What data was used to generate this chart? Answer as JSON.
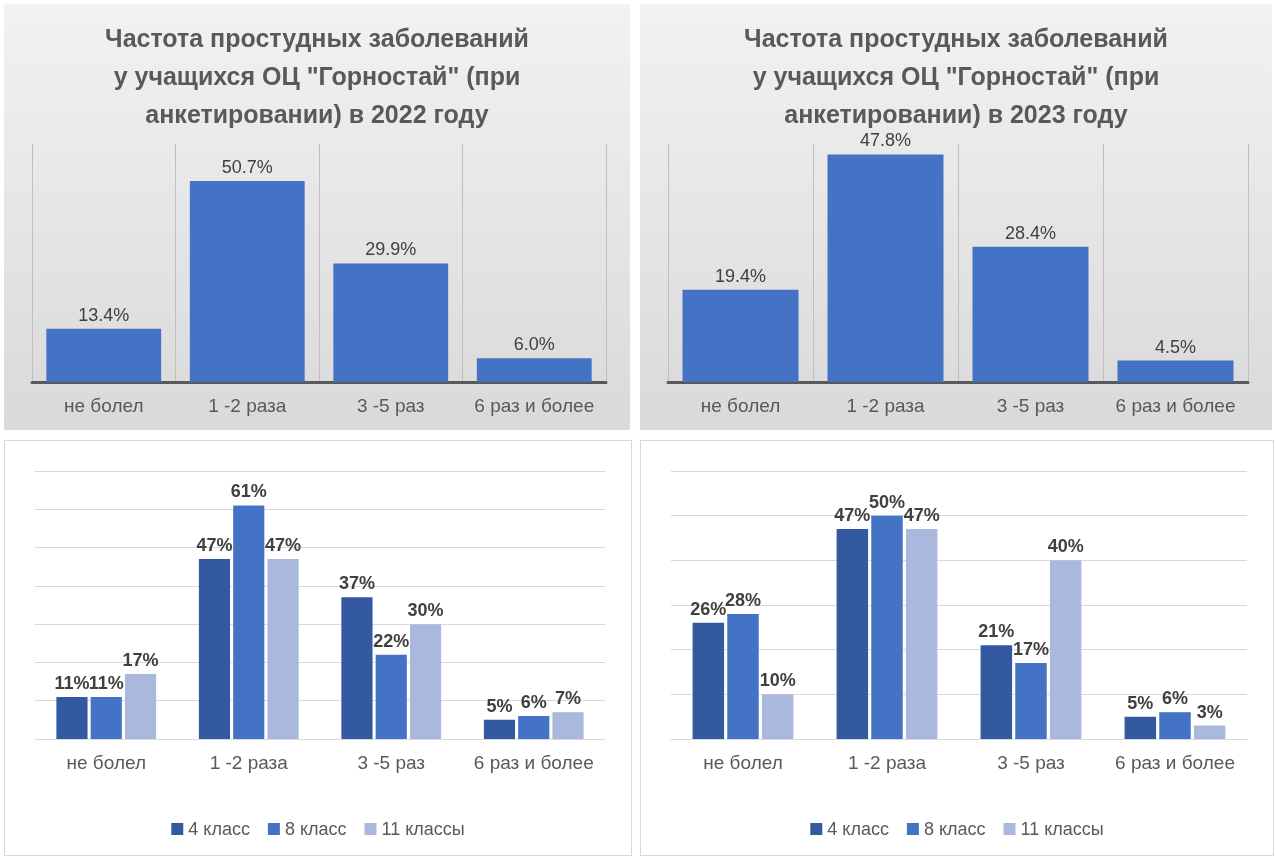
{
  "chart_data": [
    {
      "type": "bar",
      "title": "Частота простудных заболеваний у учащихся ОЦ \"Горностай\" (при анкетировании) в 2022 году",
      "categories": [
        "не болел",
        "1 -2 раза",
        "3 -5 раз",
        "6 раз и более"
      ],
      "values": [
        13.4,
        50.7,
        29.9,
        6.0
      ],
      "value_labels": [
        "13.4%",
        "50.7%",
        "29.9%",
        "6.0%"
      ],
      "color": "#4472c4",
      "grid": "x",
      "tick_labels": "x"
    },
    {
      "type": "bar",
      "title": "Частота простудных заболеваний у учащихся ОЦ \"Горностай\" (при анкетировании) в 2023 году",
      "categories": [
        "не болел",
        "1 -2 раза",
        "3 -5 раз",
        "6 раз и более"
      ],
      "values": [
        19.4,
        47.8,
        28.4,
        4.5
      ],
      "value_labels": [
        "19.4%",
        "47.8%",
        "28.4%",
        "4.5%"
      ],
      "color": "#4472c4",
      "grid": "x",
      "tick_labels": "x"
    },
    {
      "type": "bar",
      "categories": [
        "не болел",
        "1 -2 раза",
        "3 -5 раз",
        "6 раз и более"
      ],
      "series": [
        {
          "name": "4 класс",
          "color": "#335aa0",
          "values": [
            11,
            47,
            37,
            5
          ],
          "value_labels": [
            "11%",
            "47%",
            "37%",
            "5%"
          ]
        },
        {
          "name": "8 класс",
          "color": "#4472c4",
          "values": [
            11,
            61,
            22,
            6
          ],
          "value_labels": [
            "11%",
            "61%",
            "22%",
            "6%"
          ]
        },
        {
          "name": "11 классы",
          "color": "#a9b8dc",
          "values": [
            17,
            47,
            30,
            7
          ],
          "value_labels": [
            "17%",
            "47%",
            "30%",
            "7%"
          ]
        }
      ],
      "ylim": [
        0,
        70
      ],
      "yticks": [
        {
          "value": 0,
          "label": null
        },
        {
          "value": 10,
          "label": null
        },
        {
          "value": 20,
          "label": null
        },
        {
          "value": 30,
          "label": null
        },
        {
          "value": 40,
          "label": null
        },
        {
          "value": 50,
          "label": null
        },
        {
          "value": 60,
          "label": null
        },
        {
          "value": 70,
          "label": null
        }
      ],
      "grid": "y",
      "tick_labels": "x",
      "legend": "bottom"
    },
    {
      "type": "bar",
      "categories": [
        "не болел",
        "1 -2 раза",
        "3 -5 раз",
        "6 раз и более"
      ],
      "series": [
        {
          "name": "4 класс",
          "color": "#335aa0",
          "values": [
            26,
            47,
            21,
            5
          ],
          "value_labels": [
            "26%",
            "47%",
            "21%",
            "5%"
          ]
        },
        {
          "name": "8 класс",
          "color": "#4472c4",
          "values": [
            28,
            50,
            17,
            6
          ],
          "value_labels": [
            "28%",
            "50%",
            "17%",
            "6%"
          ]
        },
        {
          "name": "11 классы",
          "color": "#a9b8dc",
          "values": [
            10,
            47,
            40,
            3
          ],
          "value_labels": [
            "10%",
            "47%",
            "40%",
            "3%"
          ]
        }
      ],
      "ylim": [
        0,
        60
      ],
      "yticks": [
        {
          "value": 0,
          "label": null
        },
        {
          "value": 10,
          "label": null
        },
        {
          "value": 20,
          "label": null
        },
        {
          "value": 30,
          "label": null
        },
        {
          "value": 40,
          "label": null
        },
        {
          "value": 50,
          "label": null
        },
        {
          "value": 60,
          "label": null
        }
      ],
      "grid": "y",
      "tick_labels": "x",
      "legend": "bottom"
    }
  ]
}
